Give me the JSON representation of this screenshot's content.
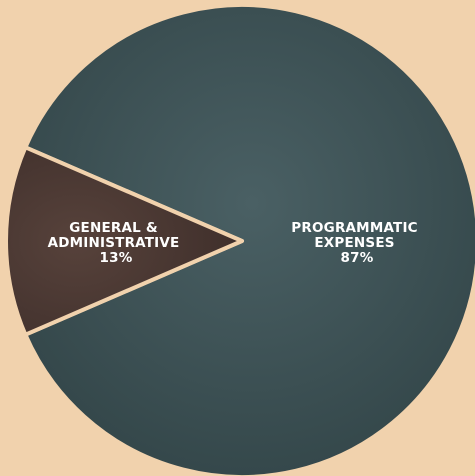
{
  "chart_data": {
    "type": "pie",
    "title": "",
    "slices": [
      {
        "label_lines": [
          "PROGRAMMATIC",
          "EXPENSES"
        ],
        "value": 87,
        "value_label": "87%",
        "color": "#3f5457"
      },
      {
        "label_lines": [
          "GENERAL &",
          "ADMINISTRATIVE"
        ],
        "value": 13,
        "value_label": "13%",
        "color": "#4a3833"
      }
    ],
    "separator_color": "#f1d2ad",
    "background_color": "#f1d2ad"
  }
}
